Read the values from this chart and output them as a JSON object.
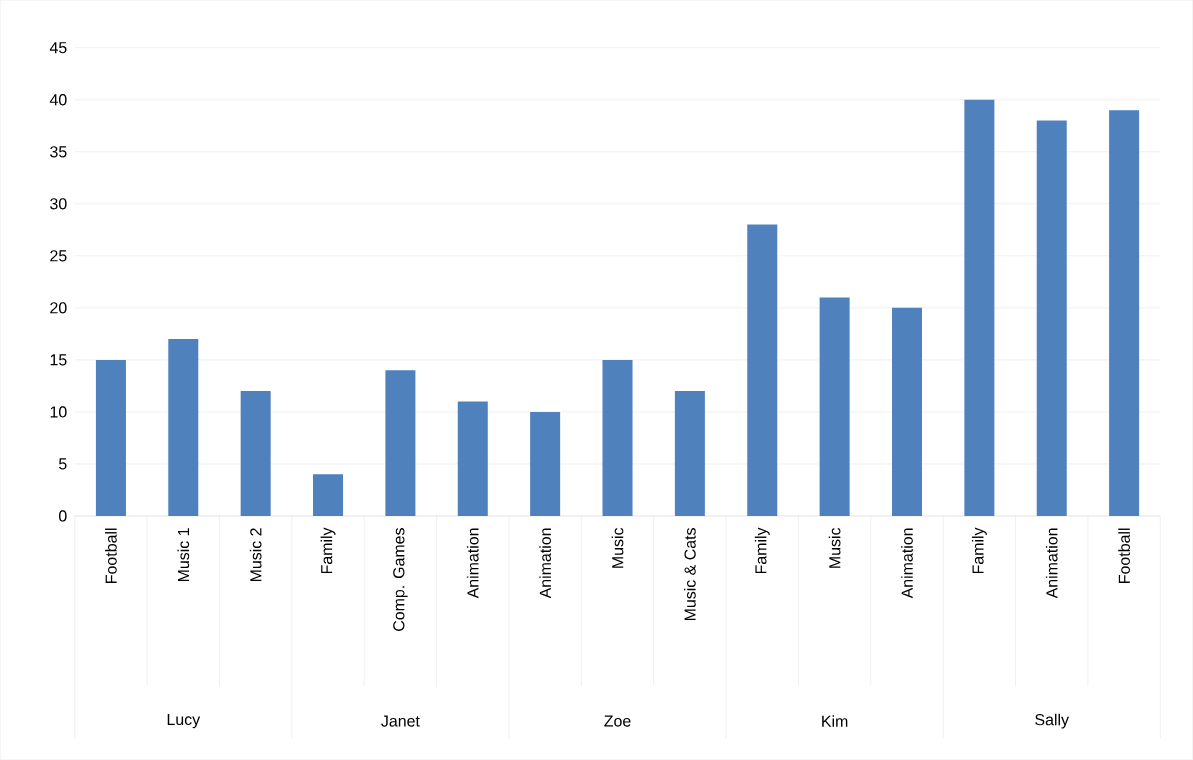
{
  "chart_data": {
    "type": "bar",
    "categories": [
      "Football",
      "Music 1",
      "Music 2",
      "Family",
      "Comp. Games",
      "Animation",
      "Animation",
      "Music",
      "Music & Cats",
      "Family",
      "Music",
      "Animation",
      "Family",
      "Animation",
      "Football"
    ],
    "values": [
      15,
      17,
      12,
      4,
      14,
      11,
      10,
      15,
      12,
      28,
      21,
      20,
      40,
      38,
      39
    ],
    "color": "#4f81bd",
    "ylim": [
      0,
      45
    ],
    "yticks": [
      0,
      5,
      10,
      15,
      20,
      25,
      30,
      35,
      40,
      45
    ],
    "grid": "y",
    "annotations": [
      "Lucy",
      "Janet",
      "Zoe",
      "Kim",
      "Sally"
    ]
  }
}
